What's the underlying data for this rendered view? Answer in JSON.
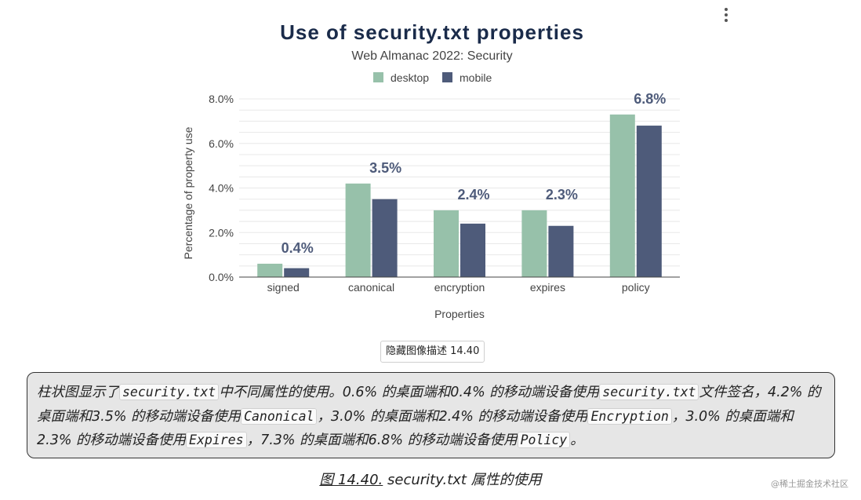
{
  "chart_data": {
    "type": "bar",
    "title": "Use of security.txt properties",
    "subtitle": "Web Almanac 2022: Security",
    "xlabel": "Properties",
    "ylabel": "Percentage of property use",
    "ylim": [
      0,
      8
    ],
    "yticks": [
      "0.0%",
      "2.0%",
      "4.0%",
      "6.0%",
      "8.0%"
    ],
    "categories": [
      "signed",
      "canonical",
      "encryption",
      "expires",
      "policy"
    ],
    "series": [
      {
        "name": "desktop",
        "color": "#97c1aa",
        "values": [
          0.6,
          4.2,
          3.0,
          3.0,
          7.3
        ]
      },
      {
        "name": "mobile",
        "color": "#4e5b7a",
        "values": [
          0.4,
          3.5,
          2.4,
          2.3,
          6.8
        ]
      }
    ],
    "data_labels": [
      "0.4%",
      "3.5%",
      "2.4%",
      "2.3%",
      "6.8%"
    ],
    "legend_position": "top",
    "grid": true
  },
  "menu": {
    "icon": "more-vertical-icon"
  },
  "hide_button": {
    "label": "隐藏图像描述 14.40"
  },
  "description": {
    "t1": "柱状图显示了",
    "c1": "security.txt",
    "t2": "中不同属性的使用。0.6% 的桌面端和0.4% 的移动端设备使用",
    "c2": "security.txt",
    "t3": "文件签名，4.2% 的桌面端和3.5% 的移动端设备使用",
    "c3": "Canonical",
    "t4": "，3.0% 的桌面端和2.4% 的移动端设备使用",
    "c4": "Encryption",
    "t5": "，3.0% 的桌面端和2.3% 的移动端设备使用",
    "c5": "Expires",
    "t6": "，7.3% 的桌面端和6.8% 的移动端设备使用",
    "c6": "Policy",
    "t7": "。"
  },
  "caption": {
    "figure_link": "图 14.40.",
    "text": " security.txt 属性的使用"
  },
  "watermark": "@稀土掘金技术社区"
}
